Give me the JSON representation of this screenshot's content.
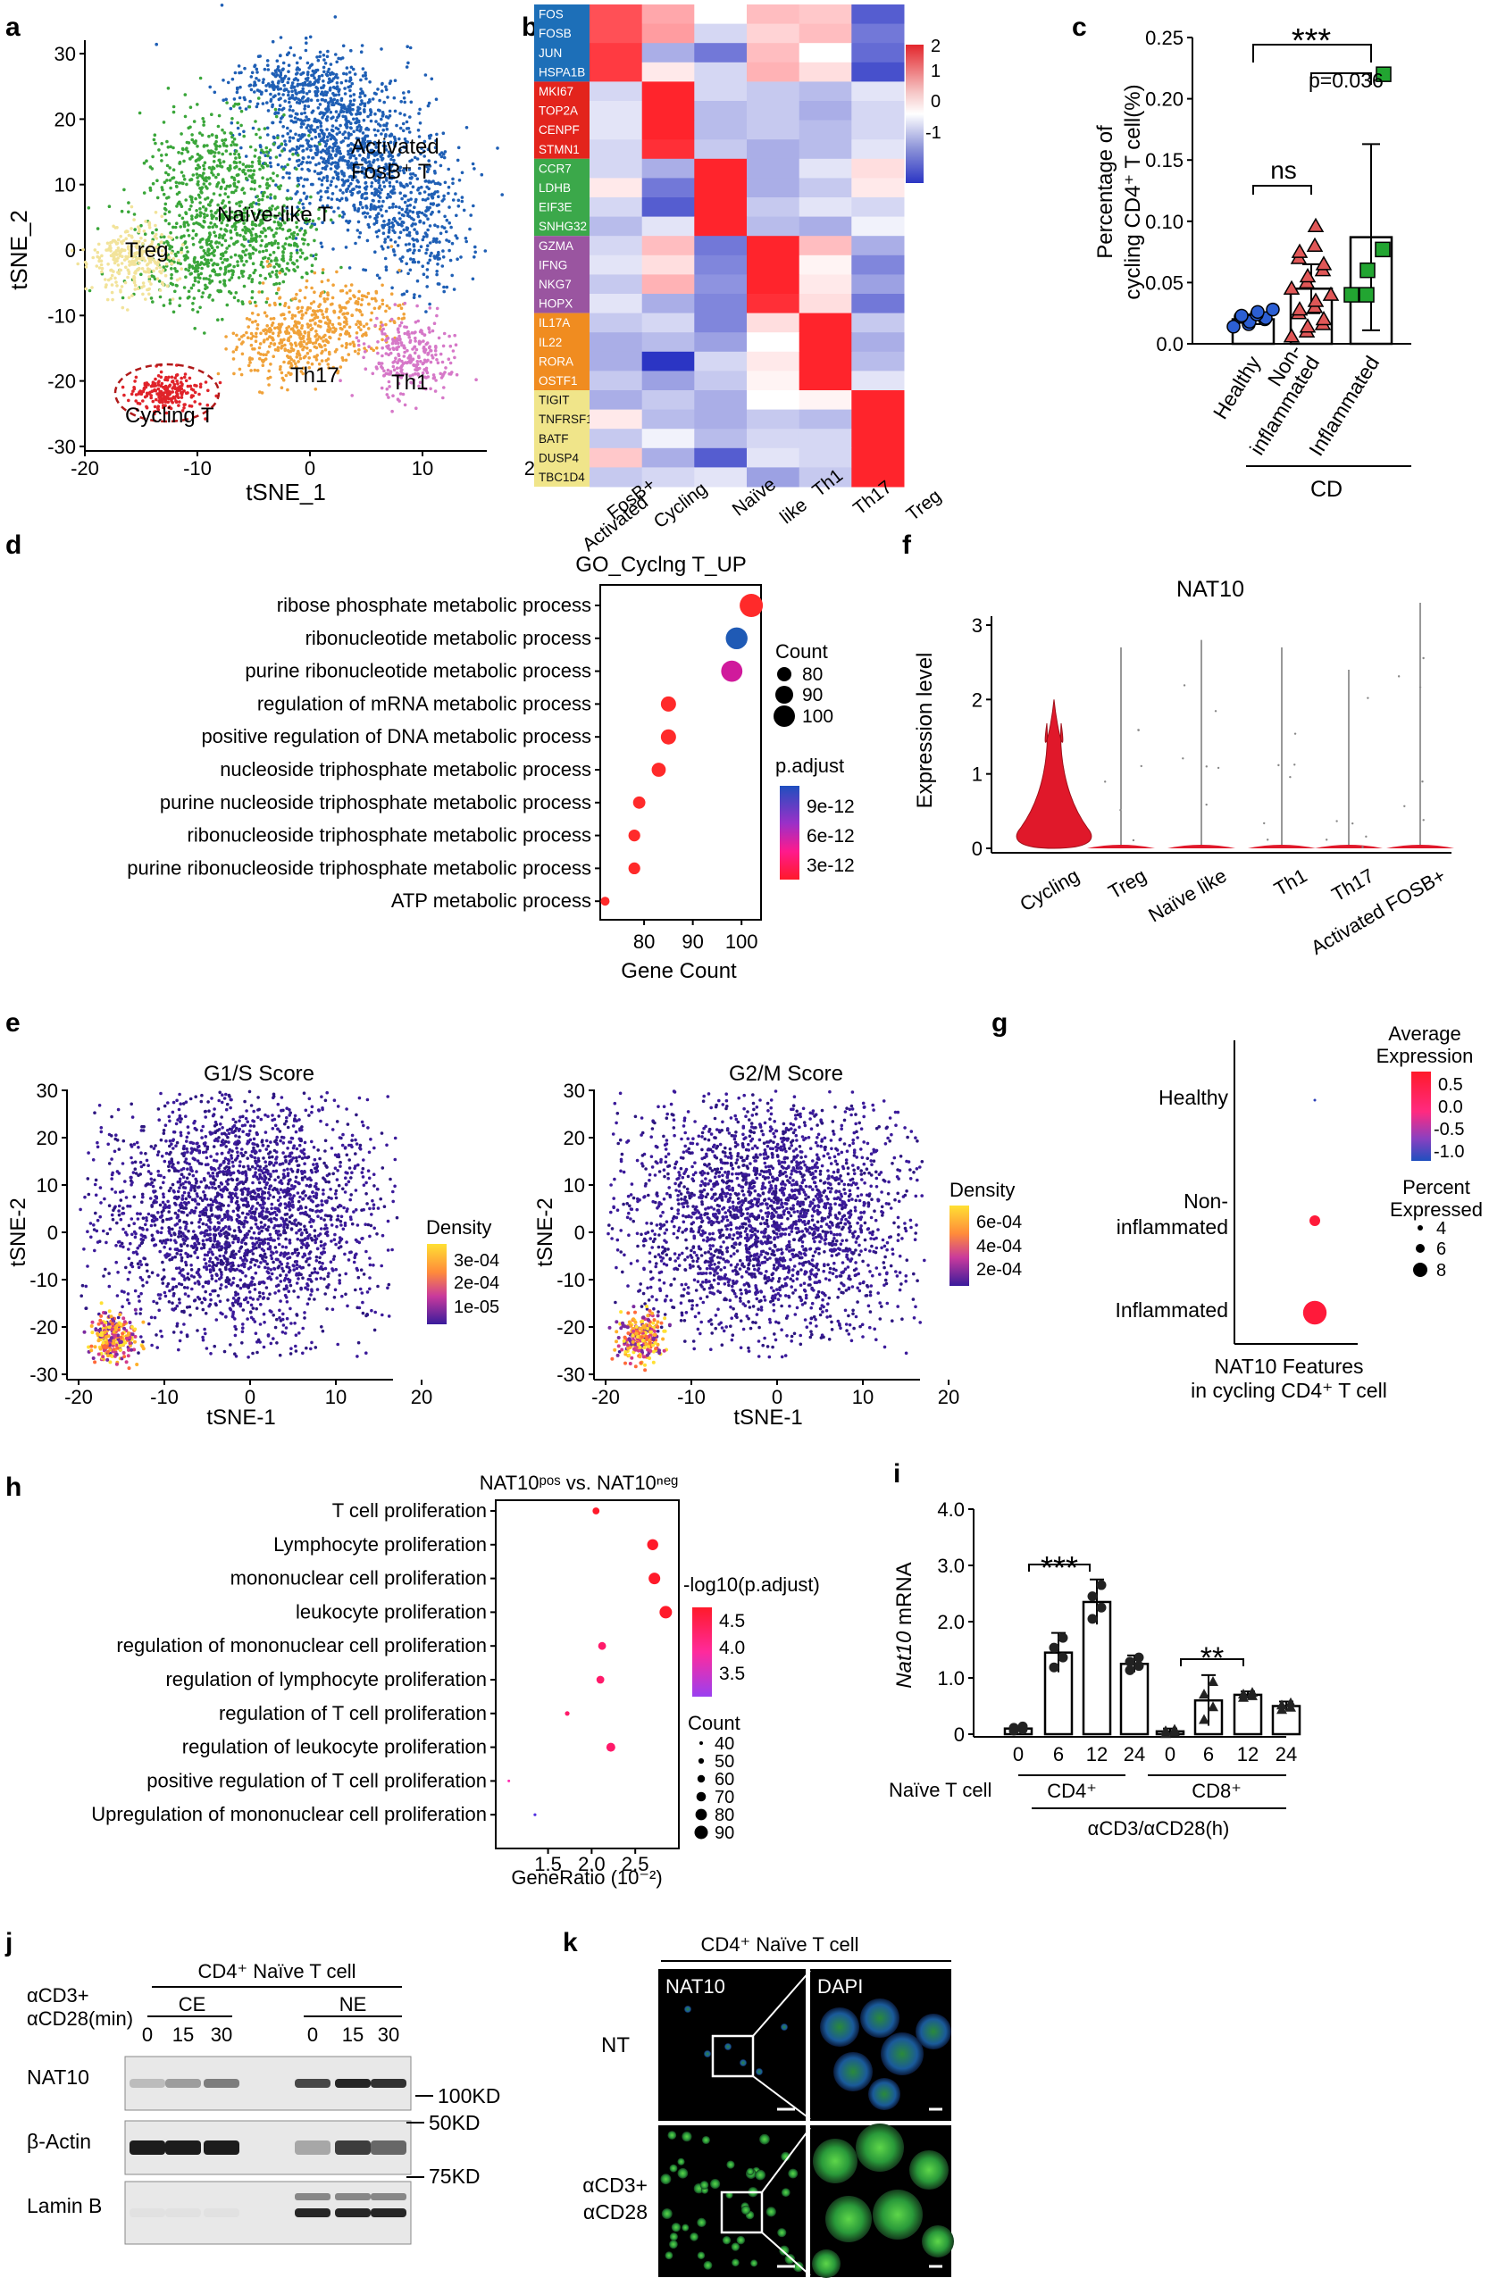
{
  "panel_letters": [
    "a",
    "b",
    "c",
    "d",
    "e",
    "f",
    "g",
    "h",
    "i",
    "j",
    "k"
  ],
  "a": {
    "xlabel": "tSNE_1",
    "ylabel": "tSNE_2",
    "yticks": [
      "30",
      "20",
      "10",
      "0",
      "-10",
      "-20",
      "-30"
    ],
    "xticks": [
      "-20",
      "-10",
      "0",
      "10",
      "20"
    ],
    "clusters": [
      {
        "name": "Activated FosB+ T",
        "label1": "Activated",
        "label2": "FosB⁺ T",
        "color": "#1f5fb5"
      },
      {
        "name": "Naïve-like T",
        "label1": "Naïve-like T",
        "color": "#3aa63a"
      },
      {
        "name": "Treg",
        "label1": "Treg",
        "color": "#f2e39a"
      },
      {
        "name": "Th17",
        "label1": "Th17",
        "color": "#f0a23a"
      },
      {
        "name": "Th1",
        "label1": "Th1",
        "color": "#d678c8"
      },
      {
        "name": "Cycling T",
        "label1": "Cycling T",
        "color": "#e0232a"
      }
    ]
  },
  "b": {
    "genes": [
      "FOS",
      "FOSB",
      "JUN",
      "HSPA1B",
      "MKI67",
      "TOP2A",
      "CENPF",
      "STMN1",
      "CCR7",
      "LDHB",
      "EIF3E",
      "SNHG32",
      "GZMA",
      "IFNG",
      "NKG7",
      "HOPX",
      "IL17A",
      "IL22",
      "RORA",
      "OSTF1",
      "TIGIT",
      "TNFRSF18",
      "BATF",
      "DUSP4",
      "TBC1D4"
    ],
    "group_colors": [
      "#1d6fb8",
      "#e3241c",
      "#3ba84a",
      "#9a55a0",
      "#f08c20",
      "#f0e58a"
    ],
    "columns": [
      "Activated FosB+",
      "Cycling",
      "Naïve like",
      "Th1",
      "Th17",
      "Treg"
    ],
    "col1": [
      "Activated",
      "FosB+"
    ],
    "col3a": "Naïve",
    "col3b": "like",
    "colTh1": "Th1",
    "legend_ticks": [
      "2",
      "1",
      "0",
      "-1"
    ]
  },
  "c": {
    "ylabel1": "Percentage of",
    "ylabel2": "cycling CD4⁺ T cell(%)",
    "yticks": [
      "0.25",
      "0.20",
      "0.15",
      "0.10",
      "0.05",
      "0.0"
    ],
    "xcats": [
      "Healthy",
      "Non-",
      "inflammated",
      "Inflammated"
    ],
    "group_label": "CD",
    "sig1": "***",
    "sig2": "p=0.036",
    "sig3": "ns"
  },
  "d": {
    "title": "GO_Cyclng T_UP",
    "xlabel": "Gene Count",
    "xticks": [
      "80",
      "90",
      "100"
    ],
    "legend_count_title": "Count",
    "legend_count": [
      "80",
      "90",
      "100"
    ],
    "legend_p_title": "p.adjust",
    "legend_p": [
      "9e-12",
      "6e-12",
      "3e-12"
    ]
  },
  "e": {
    "left_title": "G1/S Score",
    "right_title": "G2/M Score",
    "xlabel": "tSNE-1",
    "ylabel": "tSNE-2",
    "density": "Density",
    "left_legend": [
      "3e-04",
      "2e-04",
      "1e-05"
    ],
    "right_legend": [
      "6e-04",
      "4e-04",
      "2e-04"
    ],
    "yticks": [
      "30",
      "20",
      "10",
      "0",
      "-10",
      "-20",
      "-30"
    ],
    "xticks": [
      "-20",
      "-10",
      "0",
      "10",
      "20"
    ]
  },
  "f": {
    "title": "NAT10",
    "ylabel": "Expression level",
    "yticks": [
      "3",
      "2",
      "1",
      "0"
    ],
    "groups": [
      "Cycling",
      "Treg",
      "Naïve like",
      "Th1",
      "Th17",
      "Activated FOSB+"
    ]
  },
  "g": {
    "rows": [
      "Healthy",
      "Non-",
      "inflammated",
      "Inflammated"
    ],
    "xlabel1": "NAT10 Features",
    "xlabel2": "in cycling CD4⁺ T cell",
    "avg_title1": "Average",
    "avg_title2": "Expression",
    "avg_ticks": [
      "0.5",
      "0.0",
      "-0.5",
      "-1.0"
    ],
    "pct_title1": "Percent",
    "pct_title2": "Expressed",
    "pct_ticks": [
      "4",
      "6",
      "8"
    ]
  },
  "h": {
    "title": "NAT10ᵖᵒˢ vs. NAT10ⁿᵉᵍ",
    "xlabel": "GeneRatio (10⁻²)",
    "xticks": [
      "1.5",
      "2.0",
      "2.5"
    ],
    "legend_title": "-log10(p.adjust)",
    "legend_ticks": [
      "4.5",
      "4.0",
      "3.5"
    ],
    "count_title": "Count",
    "count_ticks": [
      "40",
      "50",
      "60",
      "70",
      "80",
      "90"
    ]
  },
  "i": {
    "ylabel": "Nat10",
    "ylabel2": " mRNA",
    "yticks": [
      "4.0",
      "3.0",
      "2.0",
      "1.0",
      "0"
    ],
    "xcats": [
      "0",
      "6",
      "12",
      "24",
      "0",
      "6",
      "12",
      "24"
    ],
    "naive": "Naïve T cell",
    "cd4": "CD4⁺",
    "cd8": "CD8⁺",
    "stim": "αCD3/αCD28(h)",
    "sig1": "***",
    "sig2": "**"
  },
  "j": {
    "header": "CD4⁺ Naïve T cell",
    "row_label1": "αCD3+",
    "row_label2": "αCD28(min)",
    "ce": "CE",
    "ne": "NE",
    "times": [
      "0",
      "15",
      "30",
      "0",
      "15",
      "30"
    ],
    "bands": [
      "NAT10",
      "β-Actin",
      "Lamin B"
    ],
    "mw": [
      "100KD",
      "50KD",
      "75KD"
    ]
  },
  "k": {
    "header": "CD4⁺ Naïve T cell",
    "col1": "NAT10",
    "col2": "DAPI",
    "row1": "NT",
    "row2a": "αCD3+",
    "row2b": "αCD28"
  },
  "chart_data": [
    {
      "panel": "b",
      "type": "heatmap",
      "genes": [
        "FOS",
        "FOSB",
        "JUN",
        "HSPA1B",
        "MKI67",
        "TOP2A",
        "CENPF",
        "STMN1",
        "CCR7",
        "LDHB",
        "EIF3E",
        "SNHG32",
        "GZMA",
        "IFNG",
        "NKG7",
        "HOPX",
        "IL17A",
        "IL22",
        "RORA",
        "OSTF1",
        "TIGIT",
        "TNFRSF18",
        "BATF",
        "DUSP4",
        "TBC1D4"
      ],
      "columns": [
        "Activated FosB+",
        "Cycling",
        "Naïve like",
        "Th1",
        "Th17",
        "Treg"
      ],
      "clim": [
        -1.5,
        2
      ],
      "values": [
        [
          1.6,
          0.8,
          0.0,
          0.6,
          0.5,
          -1.2
        ],
        [
          1.6,
          0.9,
          -0.3,
          0.4,
          0.6,
          -1.0
        ],
        [
          1.8,
          -0.6,
          -1.0,
          0.6,
          0.0,
          -1.1
        ],
        [
          1.8,
          0.2,
          -0.3,
          0.7,
          0.3,
          -1.3
        ],
        [
          -0.3,
          2.0,
          -0.3,
          -0.4,
          -0.5,
          -0.2
        ],
        [
          -0.2,
          2.0,
          -0.5,
          -0.4,
          -0.6,
          -0.3
        ],
        [
          -0.2,
          2.0,
          -0.5,
          -0.4,
          -0.5,
          -0.3
        ],
        [
          -0.3,
          1.9,
          -0.4,
          -0.6,
          -0.5,
          -0.2
        ],
        [
          -0.3,
          -0.6,
          2.0,
          -0.6,
          -0.2,
          0.3
        ],
        [
          0.2,
          -1.0,
          2.0,
          -0.6,
          -0.4,
          0.2
        ],
        [
          -0.3,
          -1.2,
          2.0,
          -0.4,
          -0.2,
          -0.3
        ],
        [
          -0.5,
          -0.2,
          2.0,
          -0.5,
          -0.6,
          -0.1
        ],
        [
          -0.3,
          0.6,
          -1.0,
          2.0,
          0.6,
          -0.6
        ],
        [
          -0.2,
          0.3,
          -0.9,
          2.0,
          0.1,
          -0.9
        ],
        [
          -0.4,
          0.7,
          -0.8,
          2.0,
          0.2,
          -0.7
        ],
        [
          -0.2,
          -0.6,
          -0.9,
          1.9,
          0.3,
          -1.0
        ],
        [
          -0.4,
          -0.3,
          -0.9,
          0.3,
          2.0,
          -0.4
        ],
        [
          -0.6,
          -0.5,
          -0.7,
          0.0,
          2.0,
          -0.6
        ],
        [
          -0.6,
          -1.6,
          -0.3,
          0.2,
          2.0,
          -0.5
        ],
        [
          -0.4,
          -0.7,
          -0.4,
          0.1,
          2.0,
          -0.2
        ],
        [
          -0.6,
          -0.4,
          -0.6,
          0.0,
          0.1,
          2.0
        ],
        [
          0.2,
          -0.5,
          -0.6,
          -0.4,
          -0.5,
          2.0
        ],
        [
          -0.4,
          -0.1,
          -0.5,
          -0.3,
          -0.3,
          2.0
        ],
        [
          0.5,
          -0.6,
          -1.2,
          -0.2,
          -0.3,
          2.0
        ],
        [
          -0.4,
          -0.3,
          -0.2,
          -0.7,
          -0.4,
          2.0
        ]
      ]
    },
    {
      "panel": "c",
      "type": "bar",
      "categories": [
        "Healthy",
        "Non-inflammated",
        "Inflammated"
      ],
      "values": [
        0.02,
        0.045,
        0.087
      ],
      "errors": [
        0.004,
        0.02,
        0.076
      ],
      "ylim": [
        0,
        0.25
      ],
      "points": [
        [
          0.014,
          0.016,
          0.018,
          0.02,
          0.021,
          0.022,
          0.023,
          0.024,
          0.026,
          0.028
        ],
        [
          0.006,
          0.01,
          0.014,
          0.016,
          0.02,
          0.025,
          0.028,
          0.03,
          0.035,
          0.04,
          0.045,
          0.05,
          0.055,
          0.06,
          0.065,
          0.07,
          0.075,
          0.08,
          0.096
        ],
        [
          0.04,
          0.04,
          0.06,
          0.077,
          0.22
        ]
      ]
    },
    {
      "panel": "d",
      "type": "scatter",
      "terms": [
        "ribose phosphate metabolic process",
        "ribonucleotide metabolic process",
        "purine ribonucleotide metabolic process",
        "regulation of mRNA metabolic process",
        "positive regulation of DNA metabolic process",
        "nucleoside triphosphate metabolic process",
        "purine nucleoside triphosphate metabolic process",
        "ribonucleoside triphosphate metabolic process",
        "purine ribonucleoside triphosphate metabolic process",
        "ATP metabolic process"
      ],
      "x": [
        102,
        99,
        98,
        85,
        85,
        83,
        79,
        78,
        78,
        72
      ],
      "count": [
        102,
        99,
        98,
        85,
        85,
        83,
        79,
        78,
        78,
        72
      ],
      "p_adjust": [
        1e-12,
        1.05e-11,
        7e-12,
        2e-12,
        2e-12,
        2e-12,
        1.5e-12,
        1.5e-12,
        1.5e-12,
        1e-12
      ],
      "xlim": [
        71,
        104
      ]
    },
    {
      "panel": "f",
      "type": "violin",
      "groups": [
        "Cycling",
        "Treg",
        "Naïve like",
        "Th1",
        "Th17",
        "Activated FOSB+"
      ],
      "max": [
        2.0,
        2.7,
        2.8,
        2.7,
        2.4,
        3.3
      ],
      "ylim": [
        0,
        3
      ]
    },
    {
      "panel": "g",
      "type": "dotplot",
      "rows": [
        "Healthy",
        "Non-inflammated",
        "Inflammated"
      ],
      "avg_expression": [
        -1.0,
        0.6,
        0.7
      ],
      "percent_expressed": [
        3.5,
        5.5,
        8.5
      ]
    },
    {
      "panel": "h",
      "type": "scatter",
      "terms": [
        "T cell proliferation",
        "Lymphocyte proliferation",
        "mononuclear cell proliferation",
        "leukocyte proliferation",
        "regulation of mononuclear cell proliferation",
        "regulation of lymphocyte proliferation",
        "regulation of T cell proliferation",
        "regulation of leukocyte proliferation",
        "positive regulation of T cell proliferation",
        "Upregulation of mononuclear cell proliferation"
      ],
      "x": [
        2.05,
        2.7,
        2.72,
        2.85,
        2.12,
        2.1,
        1.72,
        2.22,
        1.05,
        1.35
      ],
      "neglog10_padj": [
        4.6,
        4.5,
        4.5,
        4.4,
        4.2,
        4.2,
        4.0,
        4.0,
        3.8,
        3.4
      ],
      "count": [
        55,
        70,
        72,
        75,
        58,
        58,
        47,
        62,
        35,
        40
      ]
    },
    {
      "panel": "i",
      "type": "bar",
      "categories": [
        "CD4+ 0h",
        "CD4+ 6h",
        "CD4+ 12h",
        "CD4+ 24h",
        "CD8+ 0h",
        "CD8+ 6h",
        "CD8+ 12h",
        "CD8+ 24h"
      ],
      "values": [
        0.1,
        1.45,
        2.35,
        1.25,
        0.05,
        0.6,
        0.7,
        0.5
      ],
      "errors": [
        0.05,
        0.35,
        0.4,
        0.15,
        0.05,
        0.45,
        0.06,
        0.08
      ],
      "ylim": [
        0,
        4.0
      ],
      "ylabel": "Nat10 mRNA"
    }
  ]
}
